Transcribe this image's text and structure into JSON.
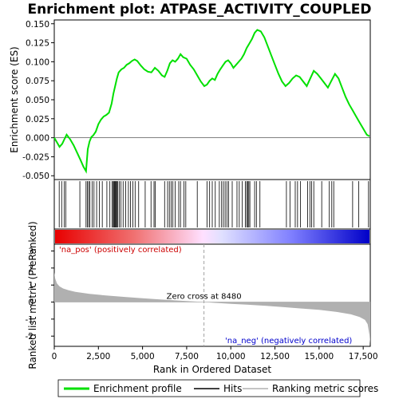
{
  "chart_data": [
    {
      "type": "line",
      "title": "Enrichment plot: ATPASE_ACTIVITY_COUPLED",
      "ylabel": "Enrichment score (ES)",
      "ylim": [
        -0.055,
        0.155
      ],
      "xlim": [
        0,
        17900
      ],
      "yticks": [
        -0.05,
        -0.025,
        0.0,
        0.025,
        0.05,
        0.075,
        0.1,
        0.125,
        0.15
      ],
      "ytick_labels": [
        "-0.050",
        "-0.025",
        "0.000",
        "0.025",
        "0.050",
        "0.075",
        "0.100",
        "0.125",
        "0.150"
      ],
      "series": [
        {
          "name": "Enrichment profile",
          "color": "#00e000",
          "x": [
            0,
            150,
            300,
            450,
            550,
            700,
            900,
            1100,
            1300,
            1500,
            1650,
            1800,
            1900,
            2000,
            2100,
            2200,
            2350,
            2500,
            2650,
            2800,
            2950,
            3100,
            3250,
            3350,
            3450,
            3550,
            3650,
            3800,
            3950,
            4100,
            4250,
            4400,
            4550,
            4700,
            4900,
            5100,
            5300,
            5500,
            5700,
            5900,
            6100,
            6250,
            6400,
            6550,
            6700,
            6850,
            7000,
            7150,
            7300,
            7500,
            7700,
            7900,
            8100,
            8300,
            8500,
            8650,
            8800,
            8950,
            9100,
            9250,
            9400,
            9550,
            9700,
            9850,
            10000,
            10150,
            10300,
            10450,
            10600,
            10750,
            10900,
            11050,
            11200,
            11350,
            11500,
            11700,
            11900,
            12100,
            12300,
            12500,
            12700,
            12900,
            13100,
            13300,
            13500,
            13700,
            13900,
            14100,
            14300,
            14500,
            14700,
            14900,
            15100,
            15300,
            15500,
            15700,
            15900,
            16100,
            16300,
            16500,
            16700,
            16900,
            17100,
            17300,
            17500,
            17700,
            17850
          ],
          "y": [
            0.0,
            -0.006,
            -0.012,
            -0.008,
            -0.003,
            0.004,
            -0.002,
            -0.01,
            -0.02,
            -0.03,
            -0.038,
            -0.044,
            -0.015,
            -0.005,
            0.001,
            0.003,
            0.008,
            0.018,
            0.024,
            0.028,
            0.03,
            0.033,
            0.045,
            0.058,
            0.068,
            0.078,
            0.086,
            0.09,
            0.092,
            0.096,
            0.098,
            0.101,
            0.103,
            0.101,
            0.095,
            0.09,
            0.087,
            0.086,
            0.092,
            0.088,
            0.082,
            0.08,
            0.088,
            0.098,
            0.102,
            0.1,
            0.104,
            0.11,
            0.106,
            0.104,
            0.096,
            0.09,
            0.082,
            0.074,
            0.068,
            0.07,
            0.075,
            0.078,
            0.076,
            0.084,
            0.09,
            0.095,
            0.1,
            0.102,
            0.098,
            0.092,
            0.096,
            0.1,
            0.104,
            0.11,
            0.118,
            0.124,
            0.13,
            0.138,
            0.142,
            0.14,
            0.132,
            0.12,
            0.108,
            0.096,
            0.084,
            0.074,
            0.068,
            0.072,
            0.078,
            0.082,
            0.08,
            0.074,
            0.068,
            0.078,
            0.088,
            0.084,
            0.078,
            0.072,
            0.066,
            0.075,
            0.084,
            0.078,
            0.066,
            0.054,
            0.044,
            0.036,
            0.028,
            0.02,
            0.012,
            0.004,
            0.002
          ]
        }
      ]
    },
    {
      "type": "scatter",
      "series": [
        {
          "name": "Hits",
          "color": "#000000",
          "x": [
            280,
            420,
            560,
            650,
            1450,
            1800,
            1880,
            1950,
            2020,
            2150,
            2250,
            2400,
            2550,
            2720,
            2980,
            3150,
            3280,
            3340,
            3380,
            3420,
            3460,
            3500,
            3540,
            3600,
            3680,
            3780,
            3900,
            4050,
            4200,
            4320,
            4450,
            4580,
            4780,
            5150,
            5480,
            5650,
            5720,
            6250,
            6420,
            6520,
            6620,
            6720,
            6850,
            7050,
            7150,
            7350,
            7450,
            8100,
            8650,
            8800,
            8950,
            9120,
            9350,
            9480,
            9580,
            9680,
            9780,
            9880,
            10080,
            10350,
            10480,
            10650,
            10820,
            10900,
            10960,
            11020,
            11080,
            11350,
            11450,
            11650,
            13150,
            13350,
            13650,
            13780,
            13950,
            14350,
            14480,
            14580,
            14700,
            15150,
            15580,
            15720,
            15830,
            16900,
            17250,
            17800
          ]
        }
      ]
    },
    {
      "type": "area",
      "ylabel": "Ranked list metric (PreRanked)",
      "xlabel": "Rank in Ordered Dataset",
      "xlim": [
        0,
        17900
      ],
      "ylim": [
        -2.6,
        3.4
      ],
      "yticks": [
        -2,
        -1,
        0,
        1,
        2,
        3
      ],
      "ytick_labels": [
        "-2",
        "-1",
        "0",
        "1",
        "2",
        "3"
      ],
      "xticks": [
        0,
        2500,
        5000,
        7500,
        10000,
        12500,
        15000,
        17500
      ],
      "xtick_labels": [
        "0",
        "2,500",
        "5,000",
        "7,500",
        "10,000",
        "12,500",
        "15,000",
        "17,500"
      ],
      "series": [
        {
          "name": "Ranking metric scores",
          "color": "#b0b0b0",
          "x": [
            0,
            50,
            150,
            300,
            500,
            800,
            1200,
            2000,
            3000,
            4000,
            5000,
            6000,
            7000,
            8000,
            8480,
            9000,
            10000,
            11000,
            12000,
            13000,
            14000,
            15000,
            16000,
            16800,
            17300,
            17600,
            17750,
            17850,
            17900
          ],
          "y": [
            1.75,
            1.4,
            1.1,
            0.92,
            0.8,
            0.7,
            0.6,
            0.48,
            0.38,
            0.3,
            0.22,
            0.15,
            0.09,
            0.03,
            0.0,
            -0.04,
            -0.1,
            -0.16,
            -0.22,
            -0.3,
            -0.38,
            -0.46,
            -0.58,
            -0.72,
            -0.88,
            -1.05,
            -1.3,
            -1.9,
            -2.45
          ]
        }
      ],
      "annotations": {
        "zero_cross": "Zero cross at 8480",
        "zero_cross_x": 8480,
        "pos_label": "'na_pos' (positively correlated)",
        "neg_label": "'na_neg' (negatively correlated)",
        "pos_color": "#cc0000",
        "neg_color": "#0000cc"
      }
    }
  ],
  "legend": {
    "items": [
      {
        "label": "Enrichment profile",
        "color": "#00e000"
      },
      {
        "label": "Hits",
        "color": "#000000"
      },
      {
        "label": "Ranking metric scores",
        "color": "#b0b0b0"
      }
    ]
  }
}
